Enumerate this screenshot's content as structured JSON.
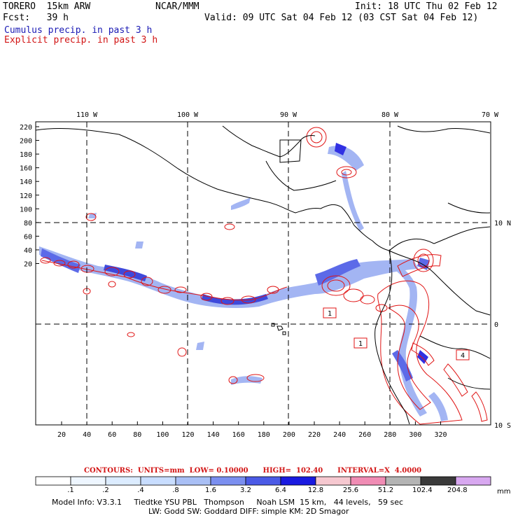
{
  "header": {
    "model": "TORERO  15km ARW",
    "org": "NCAR/MMM",
    "init": "Init: 18 UTC Thu 02 Feb 12",
    "fcst": "Fcst:   39 h",
    "valid": "Valid: 09 UTC Sat 04 Feb 12 (03 CST Sat 04 Feb 12)"
  },
  "legend": {
    "cumulus": "Cumulus precip. in past 3 h",
    "explicit": "Explicit precip. in past 3 h"
  },
  "map": {
    "lon_labels": [
      "110 W",
      "100 W",
      "90 W",
      "80 W",
      "70 W"
    ],
    "lat_labels": [
      "10 N",
      "0",
      "10 S"
    ],
    "y_ticks": [
      "220",
      "200",
      "180",
      "160",
      "140",
      "120",
      "100",
      "80",
      "60",
      "40",
      "20"
    ],
    "x_ticks": [
      "20",
      "40",
      "60",
      "80",
      "100",
      "120",
      "140",
      "160",
      "180",
      "200",
      "220",
      "240",
      "260",
      "280",
      "300",
      "320"
    ],
    "box_labels": [
      "1",
      "1",
      "4"
    ]
  },
  "contours": {
    "units": "CONTOURS:  UNITS=mm  LOW= 0.10000",
    "high": "HIGH=  102.40",
    "interval": "INTERVAL=X  4.0000"
  },
  "colorbar": {
    "labels": [
      ".1",
      ".2",
      ".4",
      ".8",
      "1.6",
      "3.2",
      "6.4",
      "12.8",
      "25.6",
      "51.2",
      "102.4",
      "204.8"
    ],
    "unit": "mm",
    "colors": [
      "#ffffff",
      "#eef6ff",
      "#dcecff",
      "#c8ddff",
      "#a9bff5",
      "#7b8ff0",
      "#4b5ae6",
      "#1a1ae0",
      "#f6c8d0",
      "#f08cb4",
      "#b4b4b4",
      "#3a3a3a",
      "#d8a8f0"
    ]
  },
  "footer": {
    "line1": "Model Info: V3.3.1     Tiedtke YSU PBL   Thompson     Noah LSM  15 km,   44 levels,   59 sec",
    "line2": "LW: Godd SW: Goddard DIFF: simple KM: 2D Smagor"
  }
}
